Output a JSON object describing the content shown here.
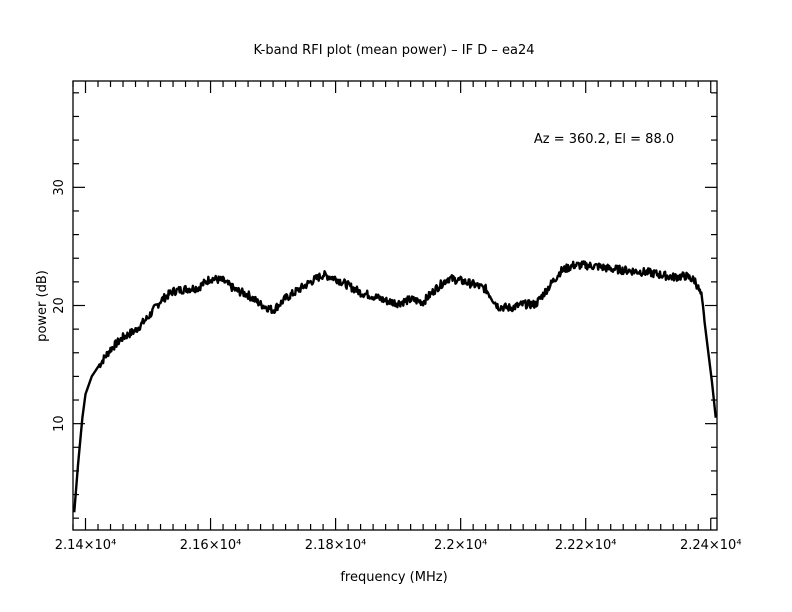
{
  "chart_data": {
    "type": "line",
    "title": "K-band RFI plot (mean power) – IF D – ea24",
    "xlabel": "frequency (MHz)",
    "ylabel": "power (dB)",
    "annotation": "Az = 360.2, El = 88.0",
    "xlim": [
      21380,
      22410
    ],
    "ylim": [
      1,
      39
    ],
    "x_ticks": [
      {
        "value": 21400,
        "label": "2.14×10⁴"
      },
      {
        "value": 21600,
        "label": "2.16×10⁴"
      },
      {
        "value": 21800,
        "label": "2.18×10⁴"
      },
      {
        "value": 22000,
        "label": "2.2×10⁴"
      },
      {
        "value": 22200,
        "label": "2.22×10⁴"
      },
      {
        "value": 22400,
        "label": "2.24×10⁴"
      }
    ],
    "y_ticks": [
      {
        "value": 10,
        "label": "10"
      },
      {
        "value": 20,
        "label": "20"
      },
      {
        "value": 30,
        "label": "30"
      }
    ],
    "grid": false,
    "series": [
      {
        "color": "#000000",
        "x": [
          21382,
          21388,
          21395,
          21400,
          21410,
          21420,
          21440,
          21460,
          21480,
          21500,
          21520,
          21540,
          21560,
          21580,
          21600,
          21620,
          21640,
          21660,
          21680,
          21700,
          21720,
          21740,
          21760,
          21780,
          21800,
          21820,
          21840,
          21860,
          21880,
          21900,
          21920,
          21940,
          21960,
          21980,
          22000,
          22020,
          22040,
          22060,
          22080,
          22100,
          22120,
          22140,
          22160,
          22180,
          22200,
          22220,
          22240,
          22260,
          22280,
          22300,
          22320,
          22340,
          22360,
          22375,
          22385,
          22395,
          22402,
          22408
        ],
        "y": [
          2.5,
          6.5,
          10.5,
          12.5,
          14.0,
          14.8,
          16.3,
          17.3,
          17.9,
          19.0,
          20.4,
          21.2,
          21.4,
          21.5,
          22.3,
          22.1,
          21.3,
          20.9,
          20.1,
          19.6,
          20.6,
          21.3,
          22.0,
          22.6,
          22.3,
          21.7,
          21.1,
          20.8,
          20.4,
          20.2,
          20.5,
          20.3,
          21.4,
          22.3,
          22.1,
          21.8,
          21.4,
          19.9,
          19.8,
          20.1,
          20.1,
          21.5,
          22.9,
          23.4,
          23.4,
          23.3,
          23.1,
          23.0,
          22.9,
          22.8,
          22.6,
          22.4,
          22.5,
          22.1,
          20.8,
          16.5,
          13.5,
          10.5
        ]
      }
    ]
  }
}
